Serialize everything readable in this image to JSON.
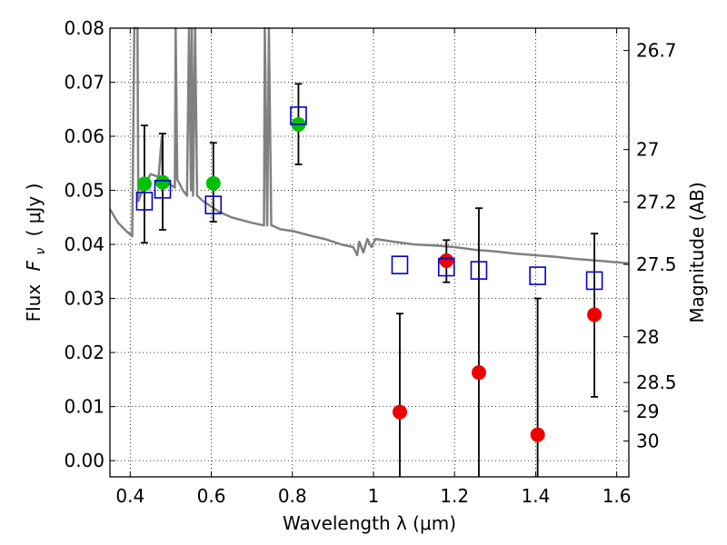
{
  "chart_data": {
    "type": "scatter",
    "xlabel": "Wavelength  λ (μm)",
    "ylabel_prefix": "Flux",
    "ylabel_symbol": "F",
    "ylabel_symbol_sub": "ν",
    "ylabel_unit": "(  μJy )",
    "y2label": "Magnitude (AB)",
    "xlim": [
      0.35,
      1.63
    ],
    "ylim": [
      -0.003,
      0.08
    ],
    "grid": true,
    "x_ticks": [
      {
        "value": 0.4,
        "label": "0.4"
      },
      {
        "value": 0.6,
        "label": "0.6"
      },
      {
        "value": 0.8,
        "label": "0.8"
      },
      {
        "value": 1.0,
        "label": "1"
      },
      {
        "value": 1.2,
        "label": "1.2"
      },
      {
        "value": 1.4,
        "label": "1.4"
      },
      {
        "value": 1.6,
        "label": "1.6"
      }
    ],
    "y_ticks": [
      {
        "value": 0.0,
        "label": "0.00"
      },
      {
        "value": 0.01,
        "label": "0.01"
      },
      {
        "value": 0.02,
        "label": "0.02"
      },
      {
        "value": 0.03,
        "label": "0.03"
      },
      {
        "value": 0.04,
        "label": "0.04"
      },
      {
        "value": 0.05,
        "label": "0.05"
      },
      {
        "value": 0.06,
        "label": "0.06"
      },
      {
        "value": 0.07,
        "label": "0.07"
      },
      {
        "value": 0.08,
        "label": "0.08"
      }
    ],
    "y2_ticks": [
      {
        "mag": 26.7,
        "label": "26.7"
      },
      {
        "mag": 27.0,
        "label": "27"
      },
      {
        "mag": 27.2,
        "label": "27.2"
      },
      {
        "mag": 27.5,
        "label": "27.5"
      },
      {
        "mag": 28.0,
        "label": "28"
      },
      {
        "mag": 28.5,
        "label": "28.5"
      },
      {
        "mag": 29.0,
        "label": "29"
      },
      {
        "mag": 30.0,
        "label": "30"
      }
    ],
    "colors": {
      "model": "#808080",
      "green": "#00c000",
      "red": "#ee0000",
      "blue": "#0000cc",
      "errorbar": "#000000"
    },
    "model_spectrum": [
      [
        0.35,
        0.0465
      ],
      [
        0.37,
        0.044
      ],
      [
        0.39,
        0.0425
      ],
      [
        0.405,
        0.0415
      ],
      [
        0.41,
        0.08
      ],
      [
        0.418,
        0.08
      ],
      [
        0.42,
        0.048
      ],
      [
        0.43,
        0.05
      ],
      [
        0.45,
        0.053
      ],
      [
        0.47,
        0.0525
      ],
      [
        0.478,
        0.06
      ],
      [
        0.48,
        0.052
      ],
      [
        0.5,
        0.051
      ],
      [
        0.51,
        0.0505
      ],
      [
        0.512,
        0.08
      ],
      [
        0.516,
        0.052
      ],
      [
        0.53,
        0.05
      ],
      [
        0.54,
        0.049
      ],
      [
        0.545,
        0.08
      ],
      [
        0.55,
        0.05
      ],
      [
        0.552,
        0.08
      ],
      [
        0.555,
        0.049
      ],
      [
        0.56,
        0.08
      ],
      [
        0.565,
        0.049
      ],
      [
        0.58,
        0.048
      ],
      [
        0.6,
        0.047
      ],
      [
        0.62,
        0.046
      ],
      [
        0.65,
        0.045
      ],
      [
        0.7,
        0.044
      ],
      [
        0.73,
        0.0435
      ],
      [
        0.732,
        0.08
      ],
      [
        0.738,
        0.0435
      ],
      [
        0.742,
        0.08
      ],
      [
        0.748,
        0.0435
      ],
      [
        0.75,
        0.0435
      ],
      [
        0.77,
        0.0428
      ],
      [
        0.8,
        0.0425
      ],
      [
        0.85,
        0.0415
      ],
      [
        0.88,
        0.041
      ],
      [
        0.9,
        0.0405
      ],
      [
        0.92,
        0.04
      ],
      [
        0.95,
        0.0395
      ],
      [
        0.96,
        0.038
      ],
      [
        0.965,
        0.0405
      ],
      [
        0.975,
        0.0385
      ],
      [
        0.985,
        0.041
      ],
      [
        0.995,
        0.0395
      ],
      [
        1.005,
        0.041
      ],
      [
        1.05,
        0.0405
      ],
      [
        1.1,
        0.04
      ],
      [
        1.15,
        0.0398
      ],
      [
        1.2,
        0.0395
      ],
      [
        1.25,
        0.039
      ],
      [
        1.3,
        0.0387
      ],
      [
        1.35,
        0.0383
      ],
      [
        1.4,
        0.038
      ],
      [
        1.45,
        0.0377
      ],
      [
        1.5,
        0.0373
      ],
      [
        1.55,
        0.037
      ],
      [
        1.6,
        0.0367
      ],
      [
        1.63,
        0.0365
      ]
    ],
    "series": [
      {
        "marker": "circle",
        "color": "green",
        "points": [
          {
            "x": 0.435,
            "y": 0.0512
          },
          {
            "x": 0.48,
            "y": 0.0515
          },
          {
            "x": 0.605,
            "y": 0.0513
          },
          {
            "x": 0.815,
            "y": 0.0622
          }
        ]
      },
      {
        "marker": "circle",
        "color": "red",
        "points": [
          {
            "x": 1.065,
            "y": 0.009
          },
          {
            "x": 1.18,
            "y": 0.037
          },
          {
            "x": 1.26,
            "y": 0.0163
          },
          {
            "x": 1.405,
            "y": 0.0048
          },
          {
            "x": 1.545,
            "y": 0.027
          }
        ]
      },
      {
        "marker": "square",
        "color": "blue",
        "points": [
          {
            "x": 0.435,
            "y": 0.048
          },
          {
            "x": 0.48,
            "y": 0.0502
          },
          {
            "x": 0.605,
            "y": 0.0473
          },
          {
            "x": 0.815,
            "y": 0.0638
          },
          {
            "x": 1.065,
            "y": 0.0362
          },
          {
            "x": 1.18,
            "y": 0.0358
          },
          {
            "x": 1.26,
            "y": 0.0352
          },
          {
            "x": 1.405,
            "y": 0.0342
          },
          {
            "x": 1.545,
            "y": 0.0333
          }
        ]
      }
    ],
    "error_bars": [
      {
        "x": 0.435,
        "low": 0.0403,
        "high": 0.062
      },
      {
        "x": 0.48,
        "low": 0.0427,
        "high": 0.0605
      },
      {
        "x": 0.605,
        "low": 0.0442,
        "high": 0.0588
      },
      {
        "x": 0.815,
        "low": 0.0548,
        "high": 0.0697
      },
      {
        "x": 1.065,
        "low": -0.003,
        "high": 0.0272
      },
      {
        "x": 1.18,
        "low": 0.033,
        "high": 0.0408
      },
      {
        "x": 1.26,
        "low": -0.003,
        "high": 0.0467
      },
      {
        "x": 1.405,
        "low": -0.003,
        "high": 0.03
      },
      {
        "x": 1.545,
        "low": 0.0118,
        "high": 0.042
      }
    ]
  }
}
